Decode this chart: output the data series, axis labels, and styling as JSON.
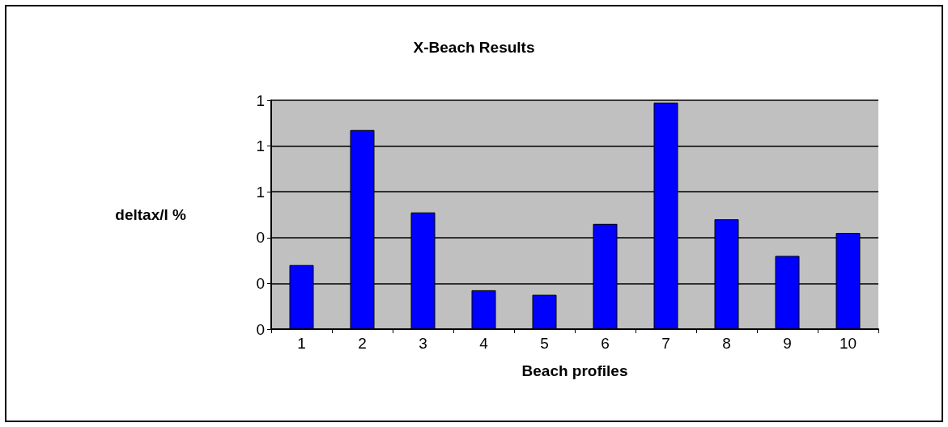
{
  "chart_data": {
    "type": "bar",
    "title": "X-Beach Results",
    "xlabel": "Beach profiles",
    "ylabel": "deltax/l %",
    "categories": [
      "1",
      "2",
      "3",
      "4",
      "5",
      "6",
      "7",
      "8",
      "9",
      "10"
    ],
    "values": [
      0.28,
      0.87,
      0.51,
      0.17,
      0.15,
      0.46,
      0.99,
      0.48,
      0.32,
      0.42
    ],
    "color": "#0000ff",
    "ylim": [
      0,
      1
    ],
    "yticks": [
      0,
      {
        "value": 0.2,
        "label": "0"
      },
      {
        "value": 0.4,
        "label": "0"
      },
      {
        "value": 0.6,
        "label": "1"
      },
      {
        "value": 0.8,
        "label": "1"
      },
      {
        "value": 1,
        "label": "1"
      }
    ],
    "grid": "y"
  }
}
